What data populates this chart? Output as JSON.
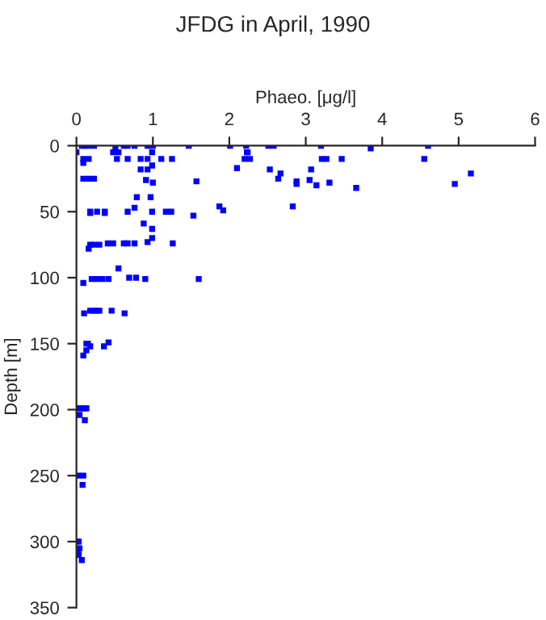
{
  "chart_data": {
    "type": "scatter",
    "title": "JFDG in April, 1990",
    "xlabel": "Phaeo. [μg/l]",
    "ylabel": "Depth [m]",
    "xlim": [
      0,
      6
    ],
    "xticks": [
      0,
      1,
      2,
      3,
      4,
      5,
      6
    ],
    "ylim": [
      350,
      0
    ],
    "yticks": [
      0,
      50,
      100,
      150,
      200,
      250,
      300,
      350
    ],
    "marker": "square",
    "grid": false,
    "legend": false,
    "series": [
      {
        "color": "#0000ff",
        "x": [
          0.07,
          0.11,
          0.16,
          0.23,
          0.62,
          0.67,
          0.76,
          0.93,
          0.97,
          1.0,
          1.47,
          2.01,
          2.22,
          2.51,
          2.58,
          3.2,
          4.6,
          3.85,
          0.51,
          0.0,
          0.48,
          0.55,
          0.99,
          2.23,
          2.24,
          0.09,
          0.16,
          0.53,
          0.67,
          0.84,
          0.93,
          1.11,
          1.25,
          2.2,
          2.27,
          3.21,
          3.27,
          3.47,
          4.55,
          0.09,
          0.99,
          0.84,
          0.93,
          2.1,
          2.53,
          3.07,
          2.67,
          5.16,
          0.09,
          0.16,
          0.23,
          2.64,
          3.05,
          0.91,
          1.57,
          2.88,
          1.0,
          3.31,
          2.88,
          4.95,
          3.14,
          3.66,
          0.79,
          0.97,
          1.87,
          2.83,
          0.76,
          1.92,
          0.18,
          0.27,
          0.37,
          0.67,
          0.99,
          1.17,
          1.24,
          0.18,
          0.37,
          1.53,
          0.88,
          0.99,
          0.99,
          0.93,
          0.41,
          0.48,
          0.62,
          0.67,
          0.76,
          1.26,
          0.18,
          0.23,
          0.3,
          0.16,
          0.55,
          0.69,
          0.78,
          0.2,
          0.27,
          0.34,
          0.42,
          0.9,
          1.6,
          0.09,
          0.18,
          0.22,
          0.26,
          0.3,
          0.46,
          0.63,
          0.1,
          0.13,
          0.15,
          0.42,
          0.18,
          0.36,
          0.13,
          0.09,
          0.02,
          0.06,
          0.1,
          0.13,
          0.04,
          0.11,
          0.02,
          0.09,
          0.08,
          0.01,
          0.03,
          0.04,
          0.02,
          0.03,
          0.07
        ],
        "values": [
          0,
          0,
          0,
          0,
          0,
          0,
          0,
          0,
          0,
          0,
          0,
          0,
          0,
          0,
          0,
          0,
          0,
          2,
          2,
          5,
          5,
          5,
          5,
          5,
          5,
          10,
          10,
          10,
          10,
          10,
          10,
          10,
          10,
          10,
          10,
          10,
          10,
          10,
          10,
          13,
          15,
          18,
          18,
          17,
          18,
          18,
          21,
          21,
          25,
          25,
          25,
          25,
          26,
          26,
          27,
          27,
          28,
          28,
          29,
          29,
          30,
          32,
          39,
          39,
          46,
          46,
          47,
          49,
          50,
          50,
          50,
          50,
          50,
          50,
          50,
          51,
          51,
          53,
          59,
          63,
          70,
          73,
          74,
          74,
          74,
          74,
          74,
          74,
          75,
          75,
          75,
          78,
          93,
          100,
          100,
          101,
          101,
          101,
          101,
          101,
          101,
          104,
          125,
          125,
          125,
          125,
          125,
          127,
          127,
          150,
          150,
          149,
          152,
          152,
          155,
          159,
          199,
          199,
          199,
          199,
          204,
          208,
          250,
          250,
          257,
          300,
          300,
          305,
          307,
          310,
          314
        ]
      }
    ]
  }
}
